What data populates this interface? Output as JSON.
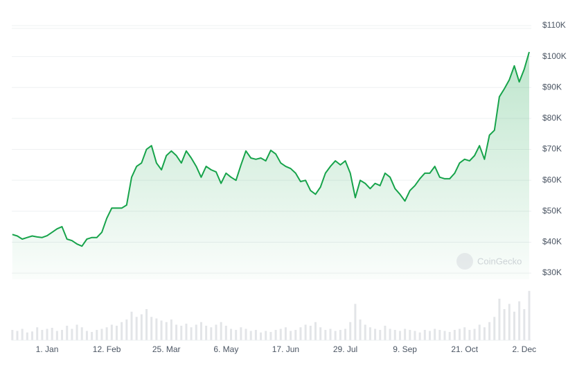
{
  "chart_data": {
    "type": "line",
    "categories": [
      null,
      null,
      null,
      null,
      null,
      null,
      null,
      "1. Jan",
      null,
      null,
      null,
      null,
      null,
      null,
      null,
      null,
      null,
      null,
      null,
      "12. Feb",
      null,
      null,
      null,
      null,
      null,
      null,
      null,
      null,
      null,
      null,
      null,
      "25. Mar",
      null,
      null,
      null,
      null,
      null,
      null,
      null,
      null,
      null,
      null,
      null,
      "6. May",
      null,
      null,
      null,
      null,
      null,
      null,
      null,
      null,
      null,
      null,
      null,
      "17. Jun",
      null,
      null,
      null,
      null,
      null,
      null,
      null,
      null,
      null,
      null,
      null,
      "29. Jul",
      null,
      null,
      null,
      null,
      null,
      null,
      null,
      null,
      null,
      null,
      null,
      "9. Sep",
      null,
      null,
      null,
      null,
      null,
      null,
      null,
      null,
      null,
      null,
      null,
      "21. Oct",
      null,
      null,
      null,
      null,
      null,
      null,
      null,
      null,
      null,
      null,
      null,
      "2. Dec",
      null
    ],
    "series": [
      {
        "color": "#16a34a",
        "values": [
          42500,
          42000,
          41000,
          41500,
          42000,
          41700,
          41500,
          42100,
          43200,
          44300,
          45000,
          41000,
          40500,
          39400,
          38700,
          41000,
          41500,
          41500,
          43200,
          47700,
          51000,
          51000,
          51000,
          52000,
          61000,
          64500,
          65600,
          70000,
          71200,
          65600,
          63400,
          68000,
          69500,
          68000,
          65600,
          69500,
          67200,
          64500,
          61000,
          64500,
          63400,
          62700,
          59000,
          62300,
          61000,
          60000,
          65000,
          69500,
          67200,
          66800,
          67200,
          66300,
          69700,
          68500,
          65600,
          64500,
          63800,
          62300,
          59600,
          60000,
          56700,
          55500,
          57800,
          62300,
          64500,
          66300,
          65000,
          66300,
          62300,
          54400,
          60000,
          59000,
          57300,
          59000,
          58300,
          62300,
          61000,
          57300,
          55500,
          53300,
          56700,
          58300,
          60500,
          62300,
          62300,
          64500,
          61000,
          60500,
          60500,
          62300,
          65600,
          66800,
          66300,
          68000,
          71200,
          66800,
          74600,
          76200,
          87000,
          89600,
          92500,
          97000,
          91800,
          95900,
          101500
        ]
      }
    ],
    "volume": {
      "color": "#e3e5e8",
      "values": [
        20,
        18,
        22,
        15,
        17,
        25,
        20,
        22,
        24,
        18,
        20,
        28,
        22,
        30,
        25,
        18,
        16,
        20,
        22,
        25,
        30,
        28,
        35,
        40,
        55,
        45,
        50,
        60,
        45,
        42,
        38,
        35,
        40,
        30,
        28,
        32,
        25,
        30,
        35,
        28,
        25,
        30,
        35,
        28,
        22,
        20,
        25,
        22,
        18,
        20,
        15,
        18,
        16,
        20,
        22,
        25,
        18,
        20,
        25,
        30,
        28,
        35,
        25,
        20,
        22,
        18,
        20,
        22,
        35,
        70,
        40,
        30,
        25,
        22,
        20,
        28,
        22,
        20,
        18,
        22,
        20,
        18,
        15,
        20,
        18,
        22,
        20,
        18,
        16,
        20,
        22,
        25,
        20,
        22,
        30,
        25,
        35,
        45,
        80,
        60,
        70,
        55,
        75,
        60,
        95
      ]
    },
    "volume_ylim": [
      0,
      100
    ],
    "ylim": [
      28000,
      115000
    ],
    "yticks": [
      {
        "value": 30000,
        "label": "$30K"
      },
      {
        "value": 40000,
        "label": "$40K"
      },
      {
        "value": 50000,
        "label": "$50K"
      },
      {
        "value": 60000,
        "label": "$60K"
      },
      {
        "value": 70000,
        "label": "$70K"
      },
      {
        "value": 80000,
        "label": "$80K"
      },
      {
        "value": 90000,
        "label": "$90K"
      },
      {
        "value": 100000,
        "label": "$100K"
      },
      {
        "value": 110000,
        "label": "$110K"
      }
    ],
    "grid": true,
    "watermark": "CoinGecko"
  }
}
